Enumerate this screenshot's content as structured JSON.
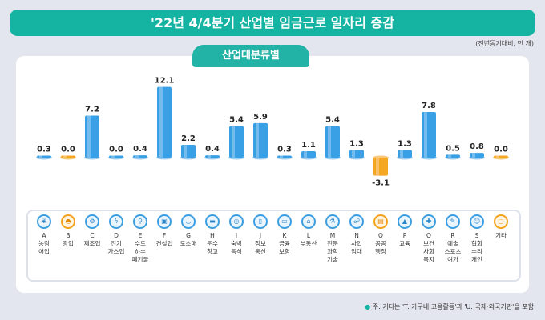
{
  "title": "'22년 4/4분기 산업별 임금근로 일자리 증감",
  "unit": "(전년동기대비, 만 개)",
  "tab": "산업대분류별",
  "note": "주: 기타는 'T. 가구내 고용활동'과 'U. 국제·외국기관'을 포함",
  "colors": {
    "bar": "#3aa0e6",
    "highlight": "#f5a623",
    "accent": "#14b3a2"
  },
  "chart_data": {
    "type": "bar",
    "categories": [
      "A",
      "B",
      "C",
      "D",
      "E",
      "F",
      "G",
      "H",
      "I",
      "J",
      "K",
      "L",
      "M",
      "N",
      "O",
      "P",
      "Q",
      "R",
      "S",
      "기타"
    ],
    "labels": [
      "농림어업",
      "광업",
      "제조업",
      "전기가스업",
      "수도하수폐기물",
      "건설업",
      "도소매",
      "운수창고",
      "숙박음식",
      "정보통신",
      "금융보험",
      "부동산",
      "전문과학기술",
      "사업임대",
      "공공행정",
      "교육",
      "보건사회복지",
      "예술스포츠여가",
      "협회수리개인",
      "기타"
    ],
    "label_lines": [
      [
        "농림",
        "어업"
      ],
      [
        "광업"
      ],
      [
        "제조업"
      ],
      [
        "전기",
        "가스업"
      ],
      [
        "수도",
        "하수",
        "폐기물"
      ],
      [
        "건설업"
      ],
      [
        "도소매"
      ],
      [
        "운수",
        "창고"
      ],
      [
        "숙박",
        "음식"
      ],
      [
        "정보",
        "통신"
      ],
      [
        "금융",
        "보험"
      ],
      [
        "부동산"
      ],
      [
        "전문",
        "과학",
        "기술"
      ],
      [
        "사업",
        "임대"
      ],
      [
        "공공",
        "행정"
      ],
      [
        "교육"
      ],
      [
        "보건",
        "사회",
        "복지"
      ],
      [
        "예술",
        "스포츠",
        "여가"
      ],
      [
        "협회",
        "수리",
        "개인"
      ],
      [
        "기타"
      ]
    ],
    "values": [
      0.3,
      0.0,
      7.2,
      0.0,
      0.4,
      12.1,
      2.2,
      0.4,
      5.4,
      5.9,
      0.3,
      1.1,
      5.4,
      1.3,
      -3.1,
      1.3,
      7.8,
      0.5,
      0.8,
      0.0
    ],
    "value_labels": [
      "0.3",
      "0.0",
      "7.2",
      "0.0",
      "0.4",
      "12.1",
      "2.2",
      "0.4",
      "5.4",
      "5.9",
      "0.3",
      "1.1",
      "5.4",
      "1.3",
      "-3.1",
      "1.3",
      "7.8",
      "0.5",
      "0.8",
      "0.0"
    ],
    "highlighted": [
      "B",
      "O",
      "기타"
    ],
    "icons": [
      "wheat-icon",
      "helmet-icon",
      "gears-icon",
      "lightning-icon",
      "faucet-icon",
      "construction-icon",
      "basket-icon",
      "truck-icon",
      "dish-icon",
      "phone-icon",
      "laptop-icon",
      "house-icon",
      "lab-icon",
      "handshake-icon",
      "scroll-icon",
      "graduation-cap-icon",
      "medical-kit-icon",
      "art-icon",
      "people-icon",
      "document-icon"
    ],
    "icon_glyphs": [
      "❦",
      "◓",
      "⚙",
      "ϟ",
      "⚲",
      "▣",
      "◡",
      "▬",
      "◎",
      "▯",
      "▭",
      "⌂",
      "⚗",
      "☍",
      "▤",
      "▲",
      "✚",
      "✎",
      "☺",
      "▢"
    ]
  }
}
